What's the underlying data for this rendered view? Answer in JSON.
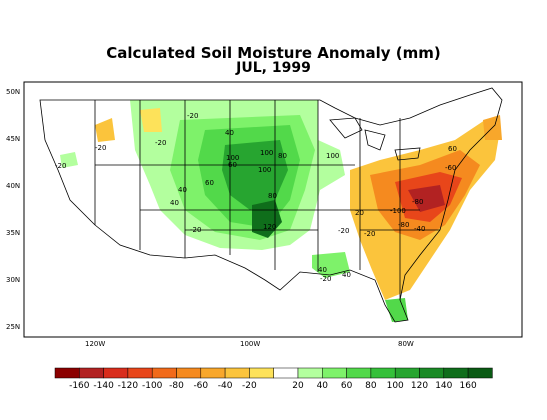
{
  "title": "Calculated Soil Moisture Anomaly (mm)",
  "subtitle": "JUL, 1999",
  "lat_labels": [
    "50N",
    "45N",
    "40N",
    "35N",
    "30N",
    "25N"
  ],
  "lon_labels": [
    "120W",
    "100W",
    "80W"
  ],
  "colorbar": {
    "labels": [
      "-160",
      "-140",
      "-120",
      "-100",
      "-80",
      "-60",
      "-40",
      "-20",
      "20",
      "40",
      "60",
      "80",
      "100",
      "120",
      "140",
      "160"
    ],
    "colors": [
      "#8b0000",
      "#b22222",
      "#d92d1c",
      "#e8461a",
      "#f16a1a",
      "#f58a1f",
      "#f8a72b",
      "#fbc43c",
      "#fde25a",
      "#ffffff",
      "#b3ff9e",
      "#7ef26a",
      "#52d94a",
      "#35c03a",
      "#27a530",
      "#1a8a25",
      "#0f6e1b",
      "#0a5a14"
    ]
  },
  "contour_labels": [
    "-20",
    "-20",
    "-20",
    "-20",
    "40",
    "40",
    "40",
    "40",
    "60",
    "60",
    "80",
    "80",
    "100",
    "100",
    "100",
    "100",
    "120",
    "-20",
    "60",
    "-60",
    "-80",
    "-100",
    "-80",
    "-20",
    "-40",
    "-20",
    "40",
    "20",
    "-20"
  ]
}
